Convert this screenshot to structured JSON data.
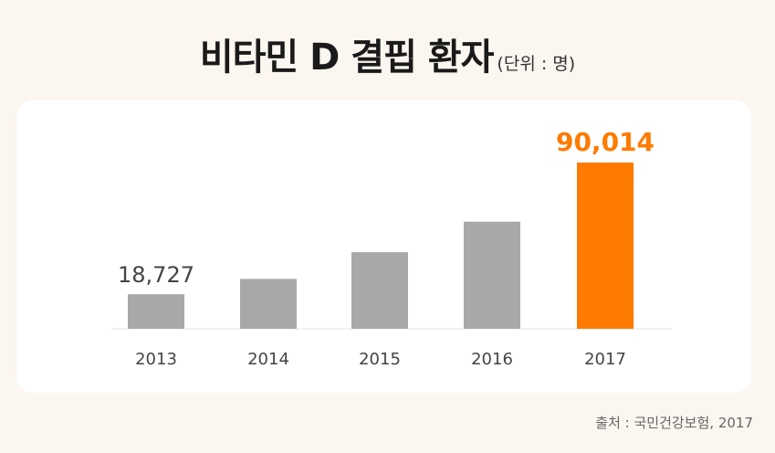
{
  "header": {
    "title": "비타민 D 결핍 환자",
    "unit": "(단위 : 명)"
  },
  "footer": {
    "source": "출처 : 국민건강보험, 2017"
  },
  "colors": {
    "background": "#fbf6ef",
    "bar_default": "#a8a8a8",
    "bar_highlight": "#ff7a00",
    "label_default": "#444444",
    "label_highlight": "#ff7a00"
  },
  "chart_data": {
    "type": "bar",
    "categories": [
      "2013",
      "2014",
      "2015",
      "2016",
      "2017"
    ],
    "values": [
      18727,
      27000,
      41500,
      58000,
      90014
    ],
    "data_labels": [
      "18,727",
      "",
      "",
      "",
      "90,014"
    ],
    "highlight_index": 4,
    "title": "비타민 D 결핍 환자",
    "xlabel": "",
    "ylabel": "",
    "ylim": [
      0,
      90014
    ],
    "grid": false,
    "legend": "none"
  }
}
